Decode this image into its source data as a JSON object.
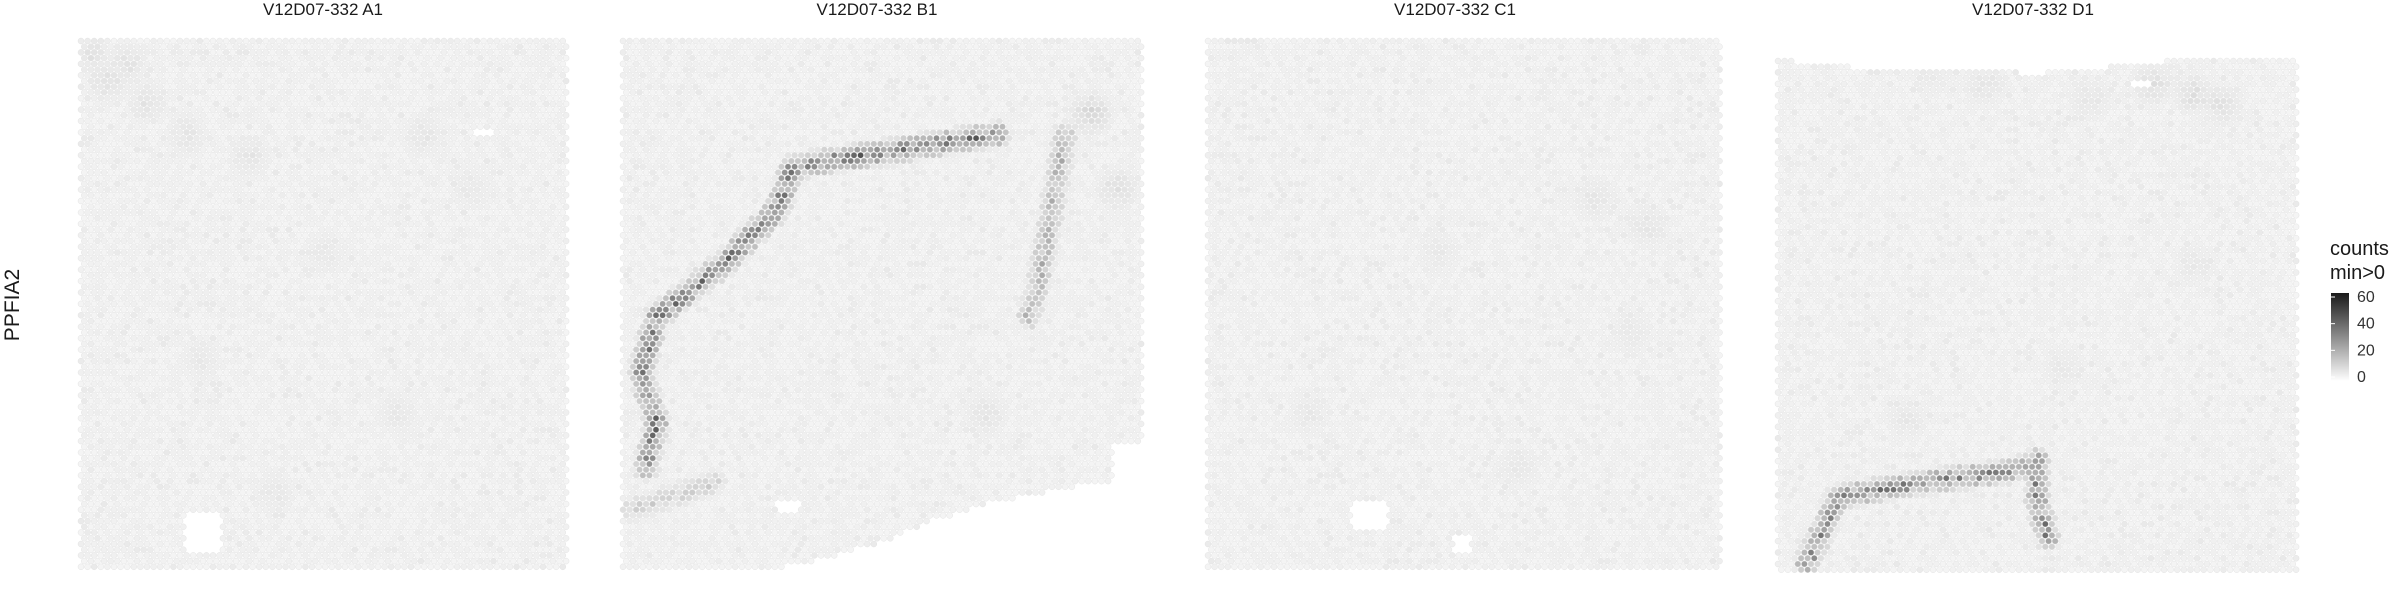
{
  "chart_data": {
    "type": "heatmap",
    "gene": "PPFIA2",
    "color_low": "#f2f2f2",
    "color_high": "#1a1a1a",
    "zero_color": "#f4f4f4",
    "panels": [
      {
        "title": "V12D07-332  A1",
        "bright": [
          [
            0.03,
            0.03,
            5
          ],
          [
            0.06,
            0.08,
            6
          ],
          [
            0.1,
            0.05,
            5
          ],
          [
            0.14,
            0.12,
            5
          ],
          [
            0.22,
            0.18,
            4
          ],
          [
            0.35,
            0.22,
            4
          ],
          [
            0.7,
            0.18,
            4
          ],
          [
            0.8,
            0.28,
            3
          ],
          [
            0.5,
            0.4,
            3
          ],
          [
            0.25,
            0.6,
            3
          ],
          [
            0.65,
            0.7,
            3
          ],
          [
            0.4,
            0.85,
            3
          ]
        ],
        "ridges": [],
        "holes": [
          [
            0.22,
            0.88,
            0.07,
            0.08
          ],
          [
            0.8,
            0.17,
            0.05,
            0.015
          ]
        ]
      },
      {
        "title": "V12D07-332  B1",
        "bright": [
          [
            0.9,
            0.14,
            8
          ],
          [
            0.95,
            0.28,
            6
          ],
          [
            0.7,
            0.7,
            4
          ],
          [
            0.92,
            0.92,
            3
          ]
        ],
        "ridges": [
          {
            "points": [
              [
                0.72,
                0.18
              ],
              [
                0.33,
                0.24
              ],
              [
                0.3,
                0.32
              ],
              [
                0.2,
                0.42
              ],
              [
                0.07,
                0.52
              ],
              [
                0.04,
                0.62
              ],
              [
                0.07,
                0.72
              ],
              [
                0.05,
                0.8
              ]
            ],
            "peak": 42
          },
          {
            "points": [
              [
                0.85,
                0.18
              ],
              [
                0.8,
                0.45
              ],
              [
                0.78,
                0.52
              ]
            ],
            "peak": 22
          },
          {
            "points": [
              [
                0.02,
                0.88
              ],
              [
                0.18,
                0.83
              ]
            ],
            "peak": 12
          }
        ],
        "holes": [
          [
            0.94,
            0.76,
            0.06,
            0.07
          ],
          [
            0.3,
            0.86,
            0.04,
            0.03
          ]
        ]
      },
      {
        "title": "V12D07-332  C1",
        "bright": [
          [
            0.75,
            0.3,
            4
          ],
          [
            0.85,
            0.35,
            4
          ],
          [
            0.82,
            0.55,
            3
          ],
          [
            0.45,
            0.4,
            3
          ],
          [
            0.2,
            0.7,
            3
          ],
          [
            0.6,
            0.8,
            3
          ]
        ],
        "ridges": [],
        "holes": [
          [
            0.28,
            0.86,
            0.07,
            0.06
          ],
          [
            0.48,
            0.93,
            0.03,
            0.03
          ]
        ]
      },
      {
        "title": "V12D07-332  D1",
        "bright": [
          [
            0.72,
            0.05,
            6
          ],
          [
            0.8,
            0.07,
            6
          ],
          [
            0.85,
            0.09,
            5
          ],
          [
            0.6,
            0.08,
            4
          ],
          [
            0.4,
            0.05,
            4
          ],
          [
            0.3,
            0.03,
            3
          ],
          [
            0.55,
            0.6,
            3
          ],
          [
            0.25,
            0.7,
            3
          ],
          [
            0.8,
            0.4,
            3
          ]
        ],
        "ridges": [
          {
            "points": [
              [
                0.06,
                0.98
              ],
              [
                0.12,
                0.85
              ],
              [
                0.3,
                0.82
              ],
              [
                0.45,
                0.8
              ],
              [
                0.5,
                0.78
              ],
              [
                0.5,
                0.86
              ],
              [
                0.52,
                0.93
              ]
            ],
            "peak": 38
          }
        ],
        "holes": [
          [
            0.68,
            0.04,
            0.04,
            0.02
          ]
        ]
      }
    ],
    "legend": {
      "title_line1": "counts",
      "title_line2": "min>0",
      "ticks": [
        "0",
        "20",
        "40",
        "60"
      ],
      "tick_values": [
        0,
        20,
        40,
        60
      ],
      "range": [
        0,
        60
      ]
    }
  }
}
